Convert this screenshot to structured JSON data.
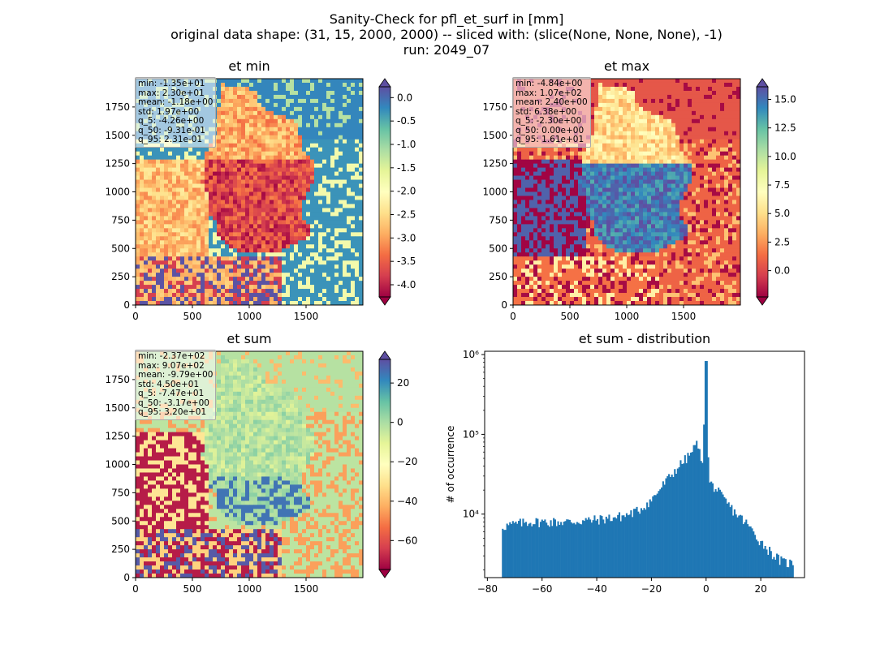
{
  "figure": {
    "title_lines": [
      "Sanity-Check for pfl_et_surf in [mm]",
      "original data shape: (31, 15, 2000, 2000) -- sliced with: (slice(None, None, None), -1)",
      "run: 2049_07"
    ]
  },
  "chart_data": [
    {
      "type": "heatmap",
      "title": "et min",
      "xlim": [
        0,
        2000
      ],
      "ylim": [
        0,
        2000
      ],
      "xticks": [
        0,
        500,
        1000,
        1500
      ],
      "yticks": [
        0,
        250,
        500,
        750,
        1000,
        1250,
        1500,
        1750
      ],
      "colorbar": {
        "cmap": "Spectral",
        "range": [
          -4.26,
          0.231
        ],
        "ticks": [
          "0.0",
          "-0.5",
          "-1.0",
          "-1.5",
          "-2.0",
          "-2.5",
          "-3.0",
          "-3.5",
          "-4.0"
        ],
        "tick_values": [
          0.0,
          -0.5,
          -1.0,
          -1.5,
          -2.0,
          -2.5,
          -3.0,
          -3.5,
          -4.0
        ],
        "extend": "both"
      },
      "stats": [
        "min: -1.35e+01",
        "max: 2.30e+01",
        "mean: -1.18e+00",
        "std: 1.97e+00",
        "q_5: -4.26e+00",
        "q_50: -9.31e-01",
        "q_95: 2.31e-01"
      ]
    },
    {
      "type": "heatmap",
      "title": "et max",
      "xlim": [
        0,
        2000
      ],
      "ylim": [
        0,
        2000
      ],
      "xticks": [
        0,
        500,
        1000,
        1500
      ],
      "yticks": [
        0,
        250,
        500,
        750,
        1000,
        1250,
        1500,
        1750
      ],
      "colorbar": {
        "cmap": "Spectral",
        "range": [
          -2.3,
          16.1
        ],
        "ticks": [
          "15.0",
          "12.5",
          "10.0",
          "7.5",
          "5.0",
          "2.5",
          "0.0"
        ],
        "tick_values": [
          15.0,
          12.5,
          10.0,
          7.5,
          5.0,
          2.5,
          0.0
        ],
        "extend": "both"
      },
      "stats": [
        "min: -4.84e+00",
        "max: 1.07e+02",
        "mean: 2.40e+00",
        "std: 6.38e+00",
        "q_5: -2.30e+00",
        "q_50: 0.00e+00",
        "q_95: 1.61e+01"
      ]
    },
    {
      "type": "heatmap",
      "title": "et sum",
      "xlim": [
        0,
        2000
      ],
      "ylim": [
        0,
        2000
      ],
      "xticks": [
        0,
        500,
        1000,
        1500
      ],
      "yticks": [
        0,
        250,
        500,
        750,
        1000,
        1250,
        1500,
        1750
      ],
      "colorbar": {
        "cmap": "Spectral",
        "range": [
          -74.7,
          32.0
        ],
        "ticks": [
          "20",
          "0",
          "−20",
          "−40",
          "−60"
        ],
        "tick_values": [
          20,
          0,
          -20,
          -40,
          -60
        ],
        "extend": "both"
      },
      "stats": [
        "min: -2.37e+02",
        "max: 9.07e+02",
        "mean: -9.79e+00",
        "std: 4.50e+01",
        "q_5: -7.47e+01",
        "q_50: -3.17e+00",
        "q_95: 3.20e+01"
      ]
    },
    {
      "type": "bar",
      "title": "et sum - distribution",
      "ylabel": "# of occurrence",
      "xlim": [
        -81,
        36
      ],
      "xticks": [
        "−80",
        "−60",
        "−40",
        "−20",
        "0",
        "20"
      ],
      "xtick_values": [
        -80,
        -60,
        -40,
        -20,
        0,
        20
      ],
      "yscale": "log",
      "ylim": [
        1600,
        1100000
      ],
      "yticks": [
        "10⁴",
        "10⁵",
        "10⁶"
      ],
      "ytick_values": [
        10000,
        100000,
        1000000
      ],
      "bins_range": [
        -74.7,
        32.0
      ],
      "anchors": [
        [
          -74.7,
          7000
        ],
        [
          -65,
          8000
        ],
        [
          -50,
          8000
        ],
        [
          -40,
          8500
        ],
        [
          -30,
          9500
        ],
        [
          -25,
          11000
        ],
        [
          -20,
          15000
        ],
        [
          -15,
          25000
        ],
        [
          -10,
          40000
        ],
        [
          -6,
          55000
        ],
        [
          -3,
          80000
        ],
        [
          -1.5,
          35000
        ],
        [
          0,
          830000
        ],
        [
          1,
          25000
        ],
        [
          3,
          22000
        ],
        [
          6,
          16000
        ],
        [
          10,
          11000
        ],
        [
          15,
          7500
        ],
        [
          20,
          4500
        ],
        [
          25,
          3000
        ],
        [
          28,
          2500
        ],
        [
          32.0,
          2400
        ]
      ]
    }
  ]
}
